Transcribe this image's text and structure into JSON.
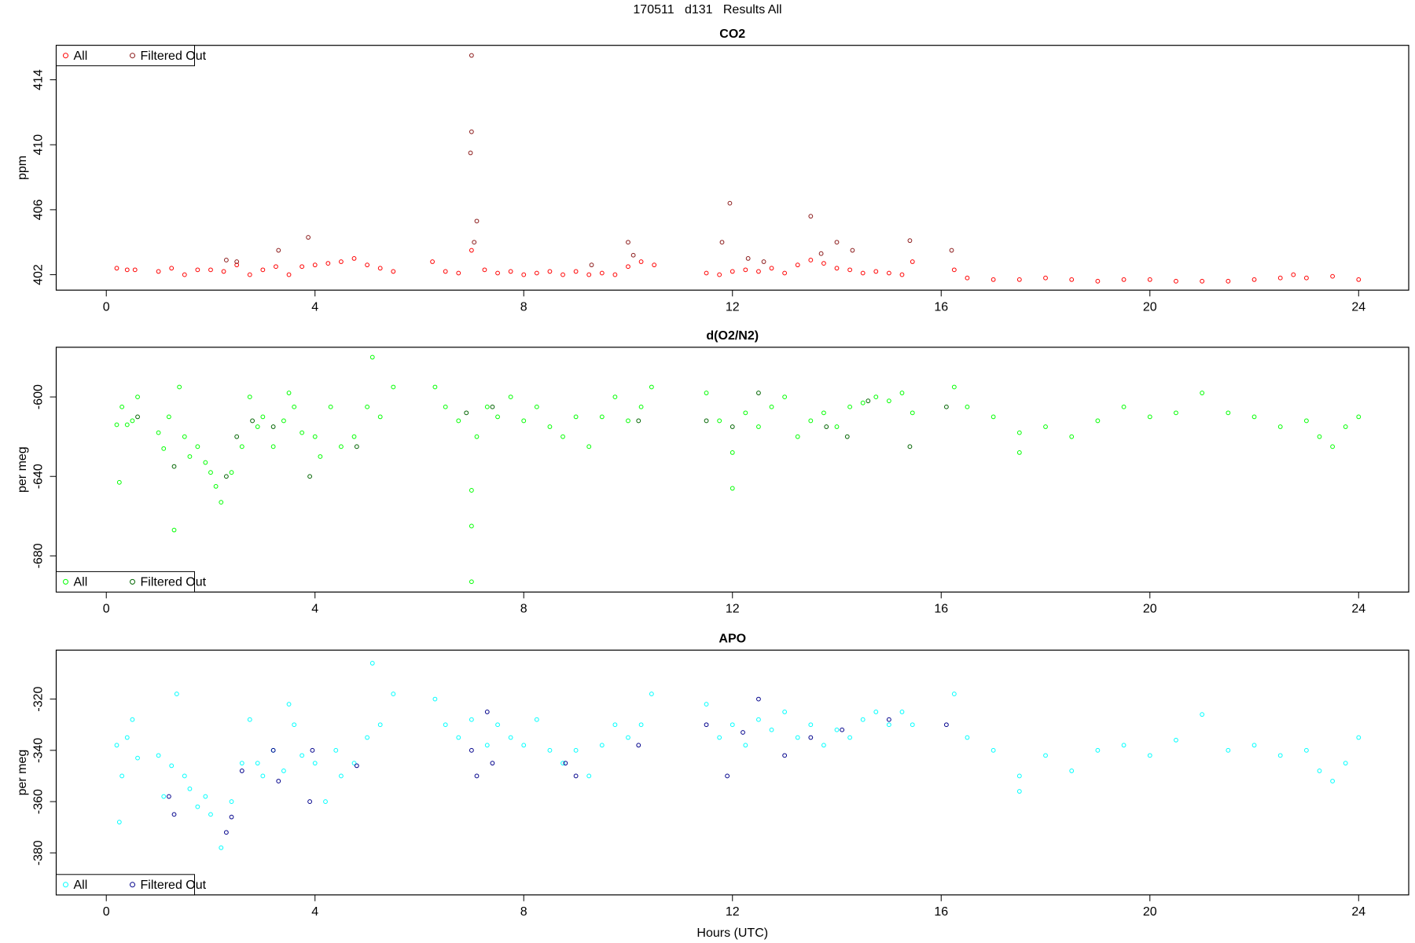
{
  "title": "170511   d131   Results All",
  "chart_data": [
    {
      "type": "scatter",
      "title": "CO2",
      "y_label": "ppm",
      "xlim": [
        -0.96,
        24.96
      ],
      "xticks": [
        0,
        4,
        8,
        12,
        16,
        20,
        24
      ],
      "ylim": [
        401.05,
        416.12
      ],
      "yticks": [
        402,
        406,
        410,
        414
      ],
      "legend": "topleft",
      "series": [
        {
          "name": "All",
          "color": "#ff0000",
          "x": [
            0.2,
            0.4,
            0.55,
            1.0,
            1.25,
            1.5,
            1.75,
            2.0,
            2.25,
            2.5,
            2.75,
            3.0,
            3.25,
            3.5,
            3.75,
            4.0,
            4.25,
            4.5,
            4.75,
            5.0,
            5.25,
            5.5,
            6.25,
            6.5,
            6.75,
            7.0,
            7.25,
            7.5,
            7.75,
            8.0,
            8.25,
            8.5,
            8.75,
            9.0,
            9.25,
            9.5,
            9.75,
            10.0,
            10.25,
            10.5,
            11.5,
            11.75,
            12.0,
            12.25,
            12.5,
            12.75,
            13.0,
            13.25,
            13.5,
            13.75,
            14.0,
            14.25,
            14.5,
            14.75,
            15.0,
            15.25,
            15.45,
            16.25,
            16.5,
            17.0,
            17.5,
            18.0,
            18.5,
            19.0,
            19.5,
            20.0,
            20.5,
            21.0,
            21.5,
            22.0,
            22.5,
            22.75,
            23.0,
            23.5,
            24.0
          ],
          "values": [
            402.4,
            402.3,
            402.3,
            402.2,
            402.4,
            402.0,
            402.3,
            402.3,
            402.2,
            402.6,
            402.0,
            402.3,
            402.5,
            402.0,
            402.5,
            402.6,
            402.7,
            402.8,
            403.0,
            402.6,
            402.4,
            402.2,
            402.8,
            402.2,
            402.1,
            403.5,
            402.3,
            402.1,
            402.2,
            402.0,
            402.1,
            402.2,
            402.0,
            402.2,
            402.0,
            402.1,
            402.0,
            402.5,
            402.8,
            402.6,
            402.1,
            402.0,
            402.2,
            402.3,
            402.2,
            402.4,
            402.1,
            402.6,
            402.9,
            402.7,
            402.4,
            402.3,
            402.1,
            402.2,
            402.1,
            402.0,
            402.8,
            402.3,
            401.8,
            401.7,
            401.7,
            401.8,
            401.7,
            401.6,
            401.7,
            401.7,
            401.6,
            401.6,
            401.6,
            401.7,
            401.8,
            402.0,
            401.8,
            401.9,
            401.7
          ]
        },
        {
          "name": "Filtered Out",
          "color": "#8b1a1a",
          "x": [
            2.3,
            2.5,
            3.3,
            3.87,
            6.98,
            7.0,
            7.0,
            7.05,
            7.1,
            9.3,
            10.0,
            10.1,
            11.8,
            11.95,
            12.3,
            12.6,
            13.5,
            13.7,
            14.0,
            14.3,
            15.4,
            16.2
          ],
          "values": [
            402.9,
            402.8,
            403.5,
            404.3,
            409.5,
            415.5,
            410.8,
            404.0,
            405.3,
            402.6,
            404.0,
            403.2,
            404.0,
            406.4,
            403.0,
            402.8,
            405.6,
            403.3,
            404.0,
            403.5,
            404.1,
            403.5
          ]
        }
      ]
    },
    {
      "type": "scatter",
      "title": "d(O2/N2)",
      "y_label": "per meg",
      "xlim": [
        -0.96,
        24.96
      ],
      "xticks": [
        0,
        4,
        8,
        12,
        16,
        20,
        24
      ],
      "ylim": [
        -698.2,
        -575
      ],
      "yticks": [
        -680,
        -640,
        -600
      ],
      "legend": "bottomleft",
      "series": [
        {
          "name": "All",
          "color": "#00ff00",
          "x": [
            0.2,
            0.25,
            0.3,
            0.4,
            0.5,
            0.6,
            1.0,
            1.1,
            1.2,
            1.3,
            1.4,
            1.5,
            1.6,
            1.75,
            1.9,
            2.0,
            2.1,
            2.2,
            2.4,
            2.6,
            2.75,
            2.9,
            3.0,
            3.2,
            3.4,
            3.5,
            3.6,
            3.75,
            4.0,
            4.1,
            4.3,
            4.5,
            4.75,
            5.0,
            5.1,
            5.25,
            5.5,
            6.3,
            6.5,
            6.75,
            7.0,
            7.0,
            7.0,
            7.1,
            7.3,
            7.5,
            7.75,
            8.0,
            8.25,
            8.5,
            8.75,
            9.0,
            9.25,
            9.5,
            9.75,
            10.0,
            10.25,
            10.45,
            11.5,
            11.75,
            12.0,
            12.0,
            12.25,
            12.5,
            12.75,
            13.0,
            13.25,
            13.5,
            13.75,
            14.0,
            14.25,
            14.5,
            14.75,
            15.0,
            15.25,
            15.45,
            16.25,
            16.5,
            17.0,
            17.5,
            17.5,
            18.0,
            18.5,
            19.0,
            19.5,
            20.0,
            20.5,
            21.0,
            21.5,
            22.0,
            22.5,
            23.0,
            23.25,
            23.5,
            23.75,
            24.0
          ],
          "values": [
            -614,
            -643,
            -605,
            -614,
            -612,
            -600,
            -618,
            -626,
            -610,
            -667,
            -595,
            -620,
            -630,
            -625,
            -633,
            -638,
            -645,
            -653,
            -638,
            -625,
            -600,
            -615,
            -610,
            -625,
            -612,
            -598,
            -605,
            -618,
            -620,
            -630,
            -605,
            -625,
            -620,
            -605,
            -580,
            -610,
            -595,
            -595,
            -605,
            -612,
            -647,
            -665,
            -693,
            -620,
            -605,
            -610,
            -600,
            -612,
            -605,
            -615,
            -620,
            -610,
            -625,
            -610,
            -600,
            -612,
            -605,
            -595,
            -598,
            -612,
            -628,
            -646,
            -608,
            -615,
            -605,
            -600,
            -620,
            -612,
            -608,
            -615,
            -605,
            -603,
            -600,
            -602,
            -598,
            -608,
            -595,
            -605,
            -610,
            -618,
            -628,
            -615,
            -620,
            -612,
            -605,
            -610,
            -608,
            -598,
            -608,
            -610,
            -615,
            -612,
            -620,
            -625,
            -615,
            -610
          ]
        },
        {
          "name": "Filtered Out",
          "color": "#006400",
          "x": [
            0.6,
            1.3,
            2.3,
            2.5,
            2.8,
            3.2,
            3.9,
            4.8,
            6.9,
            7.4,
            10.2,
            11.5,
            12.0,
            12.5,
            13.8,
            14.2,
            14.6,
            15.4,
            16.1
          ],
          "values": [
            -610,
            -635,
            -640,
            -620,
            -612,
            -615,
            -640,
            -625,
            -608,
            -605,
            -612,
            -612,
            -615,
            -598,
            -615,
            -620,
            -602,
            -625,
            -605
          ]
        }
      ]
    },
    {
      "type": "scatter",
      "title": "APO",
      "y_label": "per meg",
      "x_label": "Hours (UTC)",
      "xlim": [
        -0.96,
        24.96
      ],
      "xticks": [
        0,
        4,
        8,
        12,
        16,
        20,
        24
      ],
      "ylim": [
        -396.4,
        -300.9
      ],
      "yticks": [
        -380,
        -360,
        -340,
        -320
      ],
      "legend": "bottomleft",
      "series": [
        {
          "name": "All",
          "color": "#00ffff",
          "x": [
            0.2,
            0.25,
            0.3,
            0.4,
            0.5,
            0.6,
            1.0,
            1.1,
            1.25,
            1.35,
            1.5,
            1.6,
            1.75,
            1.9,
            2.0,
            2.2,
            2.4,
            2.6,
            2.75,
            2.9,
            3.0,
            3.2,
            3.4,
            3.5,
            3.6,
            3.75,
            4.0,
            4.2,
            4.4,
            4.5,
            4.75,
            5.0,
            5.1,
            5.25,
            5.5,
            6.3,
            6.5,
            6.75,
            7.0,
            7.3,
            7.5,
            7.75,
            8.0,
            8.25,
            8.5,
            8.75,
            9.0,
            9.25,
            9.5,
            9.75,
            10.0,
            10.25,
            10.45,
            11.5,
            11.75,
            12.0,
            12.25,
            12.5,
            12.75,
            13.0,
            13.25,
            13.5,
            13.75,
            14.0,
            14.25,
            14.5,
            14.75,
            15.0,
            15.25,
            15.45,
            16.25,
            16.5,
            17.0,
            17.5,
            17.5,
            18.0,
            18.5,
            19.0,
            19.5,
            20.0,
            20.5,
            21.0,
            21.5,
            22.0,
            22.5,
            23.0,
            23.25,
            23.5,
            23.75,
            24.0
          ],
          "values": [
            -338,
            -368,
            -350,
            -335,
            -328,
            -343,
            -342,
            -358,
            -346,
            -318,
            -350,
            -355,
            -362,
            -358,
            -365,
            -378,
            -360,
            -345,
            -328,
            -345,
            -350,
            -340,
            -348,
            -322,
            -330,
            -342,
            -345,
            -360,
            -340,
            -350,
            -345,
            -335,
            -306,
            -330,
            -318,
            -320,
            -330,
            -335,
            -328,
            -338,
            -330,
            -335,
            -338,
            -328,
            -340,
            -345,
            -340,
            -350,
            -338,
            -330,
            -335,
            -330,
            -318,
            -322,
            -335,
            -330,
            -338,
            -328,
            -332,
            -325,
            -335,
            -330,
            -338,
            -332,
            -335,
            -328,
            -325,
            -330,
            -325,
            -330,
            -318,
            -335,
            -340,
            -350,
            -356,
            -342,
            -348,
            -340,
            -338,
            -342,
            -336,
            -326,
            -340,
            -338,
            -342,
            -340,
            -348,
            -352,
            -345,
            -335
          ]
        },
        {
          "name": "Filtered Out",
          "color": "#00008b",
          "x": [
            1.2,
            1.3,
            2.3,
            2.4,
            2.6,
            3.2,
            3.3,
            3.9,
            3.95,
            4.8,
            7.0,
            7.1,
            7.3,
            7.4,
            8.8,
            9.0,
            10.2,
            11.5,
            11.9,
            12.2,
            12.5,
            13.0,
            13.5,
            14.1,
            15.0,
            16.1
          ],
          "values": [
            -358,
            -365,
            -372,
            -366,
            -348,
            -340,
            -352,
            -360,
            -340,
            -346,
            -340,
            -350,
            -325,
            -345,
            -345,
            -350,
            -338,
            -330,
            -350,
            -333,
            -320,
            -342,
            -335,
            -332,
            -328,
            -330
          ]
        }
      ]
    }
  ]
}
